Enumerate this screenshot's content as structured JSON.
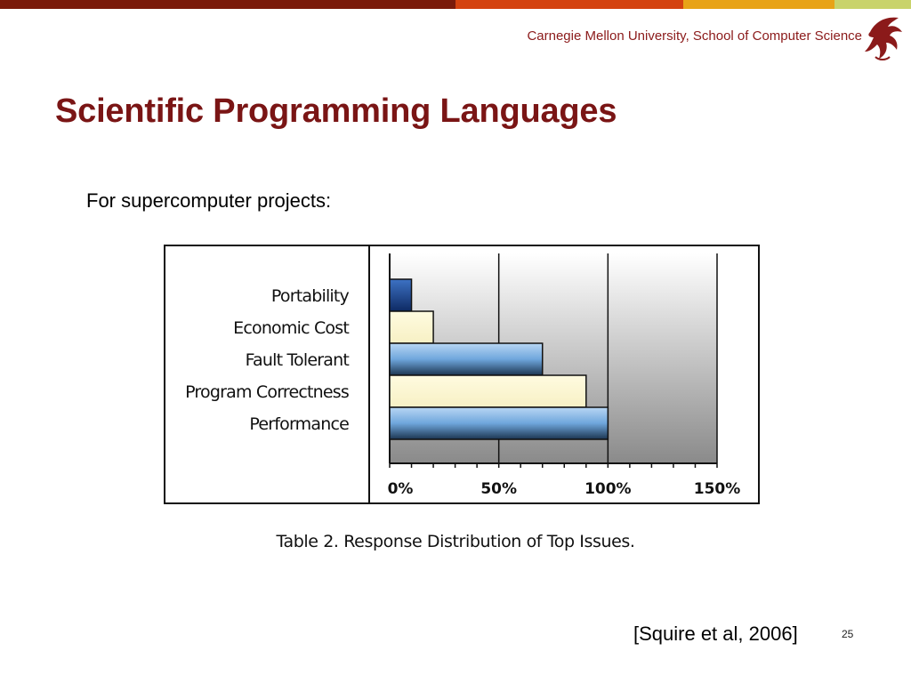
{
  "header": {
    "institution": "Carnegie Mellon University, School of Computer Science",
    "bar_colors": [
      "#7a1a0a",
      "#d4420f",
      "#e8a317",
      "#c9d36b"
    ]
  },
  "slide": {
    "title": "Scientific Programming Languages",
    "subtitle": "For supercomputer projects:",
    "caption": "Table 2. Response Distribution of Top Issues.",
    "citation": "[Squire et al, 2006]",
    "page_number": "25"
  },
  "chart_data": {
    "type": "bar",
    "orientation": "horizontal",
    "categories": [
      "Portability",
      "Economic Cost",
      "Fault Tolerant",
      "Program Correctness",
      "Performance"
    ],
    "values": [
      10,
      20,
      70,
      90,
      100
    ],
    "bar_colors": [
      "#1f4fa0",
      "#fdf8d0",
      "#7fb2e6",
      "#fdf8d0",
      "#7fb2e6"
    ],
    "xlim": [
      0,
      150
    ],
    "x_ticks": [
      0,
      50,
      100,
      150
    ],
    "x_tick_labels": [
      "0%",
      "50%",
      "100%",
      "150%"
    ],
    "grid": true,
    "title": "",
    "xlabel": "",
    "ylabel": ""
  }
}
